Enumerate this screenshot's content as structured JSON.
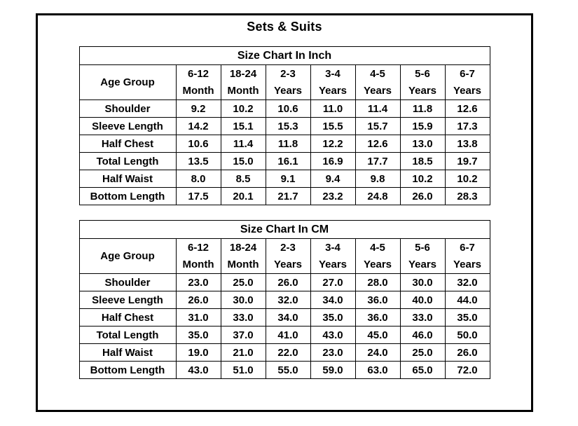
{
  "page": {
    "title": "Sets & Suits"
  },
  "tables": [
    {
      "caption": "Size Chart In Inch",
      "corner_label": "Age Group",
      "columns": [
        {
          "period": "6-12",
          "unit": "Month"
        },
        {
          "period": "18-24",
          "unit": "Month"
        },
        {
          "period": "2-3",
          "unit": "Years"
        },
        {
          "period": "3-4",
          "unit": "Years"
        },
        {
          "period": "4-5",
          "unit": "Years"
        },
        {
          "period": "5-6",
          "unit": "Years"
        },
        {
          "period": "6-7",
          "unit": "Years"
        }
      ],
      "rows": [
        {
          "label": "Shoulder",
          "values": [
            "9.2",
            "10.2",
            "10.6",
            "11.0",
            "11.4",
            "11.8",
            "12.6"
          ]
        },
        {
          "label": "Sleeve Length",
          "values": [
            "14.2",
            "15.1",
            "15.3",
            "15.5",
            "15.7",
            "15.9",
            "17.3"
          ]
        },
        {
          "label": "Half Chest",
          "values": [
            "10.6",
            "11.4",
            "11.8",
            "12.2",
            "12.6",
            "13.0",
            "13.8"
          ]
        },
        {
          "label": "Total Length",
          "values": [
            "13.5",
            "15.0",
            "16.1",
            "16.9",
            "17.7",
            "18.5",
            "19.7"
          ]
        },
        {
          "label": "Half Waist",
          "values": [
            "8.0",
            "8.5",
            "9.1",
            "9.4",
            "9.8",
            "10.2",
            "10.2"
          ]
        },
        {
          "label": "Bottom Length",
          "values": [
            "17.5",
            "20.1",
            "21.7",
            "23.2",
            "24.8",
            "26.0",
            "28.3"
          ]
        }
      ]
    },
    {
      "caption": "Size Chart In CM",
      "corner_label": "Age Group",
      "columns": [
        {
          "period": "6-12",
          "unit": "Month"
        },
        {
          "period": "18-24",
          "unit": "Month"
        },
        {
          "period": "2-3",
          "unit": "Years"
        },
        {
          "period": "3-4",
          "unit": "Years"
        },
        {
          "period": "4-5",
          "unit": "Years"
        },
        {
          "period": "5-6",
          "unit": "Years"
        },
        {
          "period": "6-7",
          "unit": "Years"
        }
      ],
      "rows": [
        {
          "label": "Shoulder",
          "values": [
            "23.0",
            "25.0",
            "26.0",
            "27.0",
            "28.0",
            "30.0",
            "32.0"
          ]
        },
        {
          "label": "Sleeve Length",
          "values": [
            "26.0",
            "30.0",
            "32.0",
            "34.0",
            "36.0",
            "40.0",
            "44.0"
          ]
        },
        {
          "label": "Half Chest",
          "values": [
            "31.0",
            "33.0",
            "34.0",
            "35.0",
            "36.0",
            "33.0",
            "35.0"
          ]
        },
        {
          "label": "Total Length",
          "values": [
            "35.0",
            "37.0",
            "41.0",
            "43.0",
            "45.0",
            "46.0",
            "50.0"
          ]
        },
        {
          "label": "Half Waist",
          "values": [
            "19.0",
            "21.0",
            "22.0",
            "23.0",
            "24.0",
            "25.0",
            "26.0"
          ]
        },
        {
          "label": "Bottom Length",
          "values": [
            "43.0",
            "51.0",
            "55.0",
            "59.0",
            "63.0",
            "65.0",
            "72.0"
          ]
        }
      ]
    }
  ],
  "colors": {
    "border": "#000000",
    "text": "#000000",
    "background": "#ffffff"
  }
}
